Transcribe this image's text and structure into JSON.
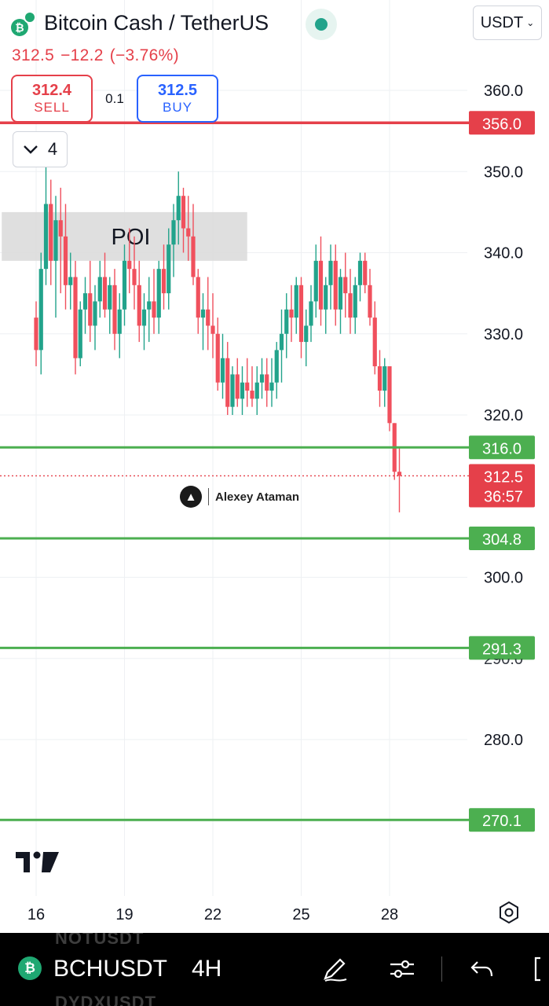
{
  "header": {
    "pair_title": "Bitcoin Cash / TetherUS",
    "coin_icon": "bitcoin-cash-icon",
    "currency": "USDT",
    "last_price": "312.5",
    "change": "−12.2",
    "change_percent": "(−3.76%)"
  },
  "trade": {
    "sell_price": "312.4",
    "sell_label": "SELL",
    "spread": "0.1",
    "buy_price": "312.5",
    "buy_label": "BUY"
  },
  "indicators": {
    "count": "4"
  },
  "watermark": {
    "author": "Alexey Ataman"
  },
  "colors": {
    "up": "#22a38b",
    "down": "#f0505d",
    "resistance_line": "#e5404a",
    "support_line": "#4caf50",
    "poi_zone": "#dcdcdc"
  },
  "chart_data": {
    "type": "candlestick",
    "interval": "4H",
    "title": "",
    "ylim": [
      270,
      362
    ],
    "y_ticks": [
      "360.0",
      "350.0",
      "340.0",
      "330.0",
      "320.0",
      "300.0",
      "290.0",
      "280.0"
    ],
    "x_ticks": [
      {
        "label": "16",
        "index": 0
      },
      {
        "label": "19",
        "index": 18
      },
      {
        "label": "22",
        "index": 36
      },
      {
        "label": "25",
        "index": 54
      },
      {
        "label": "28",
        "index": 72
      }
    ],
    "x_index_range": [
      -7,
      97
    ],
    "horizontal_levels": [
      {
        "label": "356.0",
        "value": 356.0,
        "kind": "resistance"
      },
      {
        "label": "316.0",
        "value": 316.0,
        "kind": "support"
      },
      {
        "label": "304.8",
        "value": 304.8,
        "kind": "support"
      },
      {
        "label": "291.3",
        "value": 291.3,
        "kind": "support"
      },
      {
        "label": "270.1",
        "value": 270.1,
        "kind": "support"
      }
    ],
    "current_price": {
      "label": "312.5",
      "value": 312.5,
      "countdown": "36:57"
    },
    "zones": [
      {
        "label": "POI",
        "from_value": 339,
        "to_value": 345,
        "from_index": -7,
        "to_index": 43
      }
    ],
    "candles": [
      [
        332,
        334,
        326,
        328
      ],
      [
        328,
        340,
        325,
        338
      ],
      [
        338,
        351,
        336,
        346
      ],
      [
        346,
        349,
        336,
        339
      ],
      [
        339,
        347,
        332,
        344
      ],
      [
        344,
        348,
        335,
        342
      ],
      [
        342,
        346,
        333,
        336
      ],
      [
        336,
        340,
        333,
        337
      ],
      [
        337,
        339,
        325,
        327
      ],
      [
        327,
        334,
        326,
        333
      ],
      [
        333,
        337,
        330,
        335
      ],
      [
        335,
        339,
        329,
        331
      ],
      [
        331,
        336,
        328,
        334
      ],
      [
        334,
        339,
        332,
        337
      ],
      [
        337,
        340,
        332,
        333
      ],
      [
        333,
        337,
        330,
        336
      ],
      [
        336,
        338,
        328,
        330
      ],
      [
        330,
        335,
        327,
        333
      ],
      [
        333,
        341,
        331,
        339
      ],
      [
        339,
        343,
        335,
        338
      ],
      [
        338,
        342,
        333,
        336
      ],
      [
        336,
        339,
        329,
        331
      ],
      [
        331,
        335,
        328,
        333
      ],
      [
        333,
        337,
        329,
        334
      ],
      [
        334,
        338,
        330,
        332
      ],
      [
        332,
        339,
        330,
        338
      ],
      [
        338,
        341,
        333,
        335
      ],
      [
        335,
        343,
        333,
        341
      ],
      [
        341,
        346,
        337,
        344
      ],
      [
        344,
        350,
        341,
        347
      ],
      [
        347,
        348,
        340,
        343
      ],
      [
        343,
        347,
        339,
        342
      ],
      [
        342,
        346,
        336,
        337
      ],
      [
        337,
        338,
        330,
        332
      ],
      [
        332,
        335,
        328,
        333
      ],
      [
        333,
        337,
        328,
        331
      ],
      [
        331,
        335,
        327,
        330
      ],
      [
        330,
        332,
        323,
        324
      ],
      [
        324,
        330,
        322,
        327
      ],
      [
        327,
        329,
        320,
        321
      ],
      [
        321,
        326,
        320,
        325
      ],
      [
        325,
        327,
        321,
        322
      ],
      [
        322,
        326,
        320,
        324
      ],
      [
        324,
        327,
        321,
        323
      ],
      [
        323,
        326,
        321,
        322
      ],
      [
        322,
        326,
        320,
        324
      ],
      [
        324,
        327,
        322,
        325
      ],
      [
        325,
        327,
        321,
        323
      ],
      [
        323,
        327,
        321,
        324
      ],
      [
        324,
        329,
        322,
        328
      ],
      [
        328,
        333,
        324,
        330
      ],
      [
        330,
        335,
        327,
        333
      ],
      [
        333,
        336,
        329,
        332
      ],
      [
        332,
        337,
        330,
        336
      ],
      [
        336,
        337,
        327,
        329
      ],
      [
        329,
        333,
        326,
        331
      ],
      [
        331,
        336,
        329,
        334
      ],
      [
        334,
        341,
        332,
        339
      ],
      [
        339,
        342,
        331,
        333
      ],
      [
        333,
        337,
        330,
        336
      ],
      [
        336,
        341,
        333,
        339
      ],
      [
        339,
        341,
        331,
        333
      ],
      [
        333,
        338,
        330,
        337
      ],
      [
        337,
        340,
        332,
        335
      ],
      [
        335,
        338,
        330,
        332
      ],
      [
        332,
        337,
        330,
        336
      ],
      [
        336,
        340,
        334,
        339
      ],
      [
        339,
        340,
        335,
        336
      ],
      [
        336,
        338,
        331,
        332
      ],
      [
        332,
        334,
        325,
        326
      ],
      [
        326,
        328,
        321,
        323
      ],
      [
        323,
        327,
        321,
        326
      ],
      [
        326,
        326,
        318,
        319
      ],
      [
        319,
        319,
        312,
        313
      ],
      [
        313,
        316,
        308,
        312.5
      ]
    ]
  },
  "bottom_bar": {
    "symbol": "BCHUSDT",
    "interval": "4H",
    "ghost_above": "NOTUSDT",
    "ghost_below": "DYDXUSDT"
  }
}
